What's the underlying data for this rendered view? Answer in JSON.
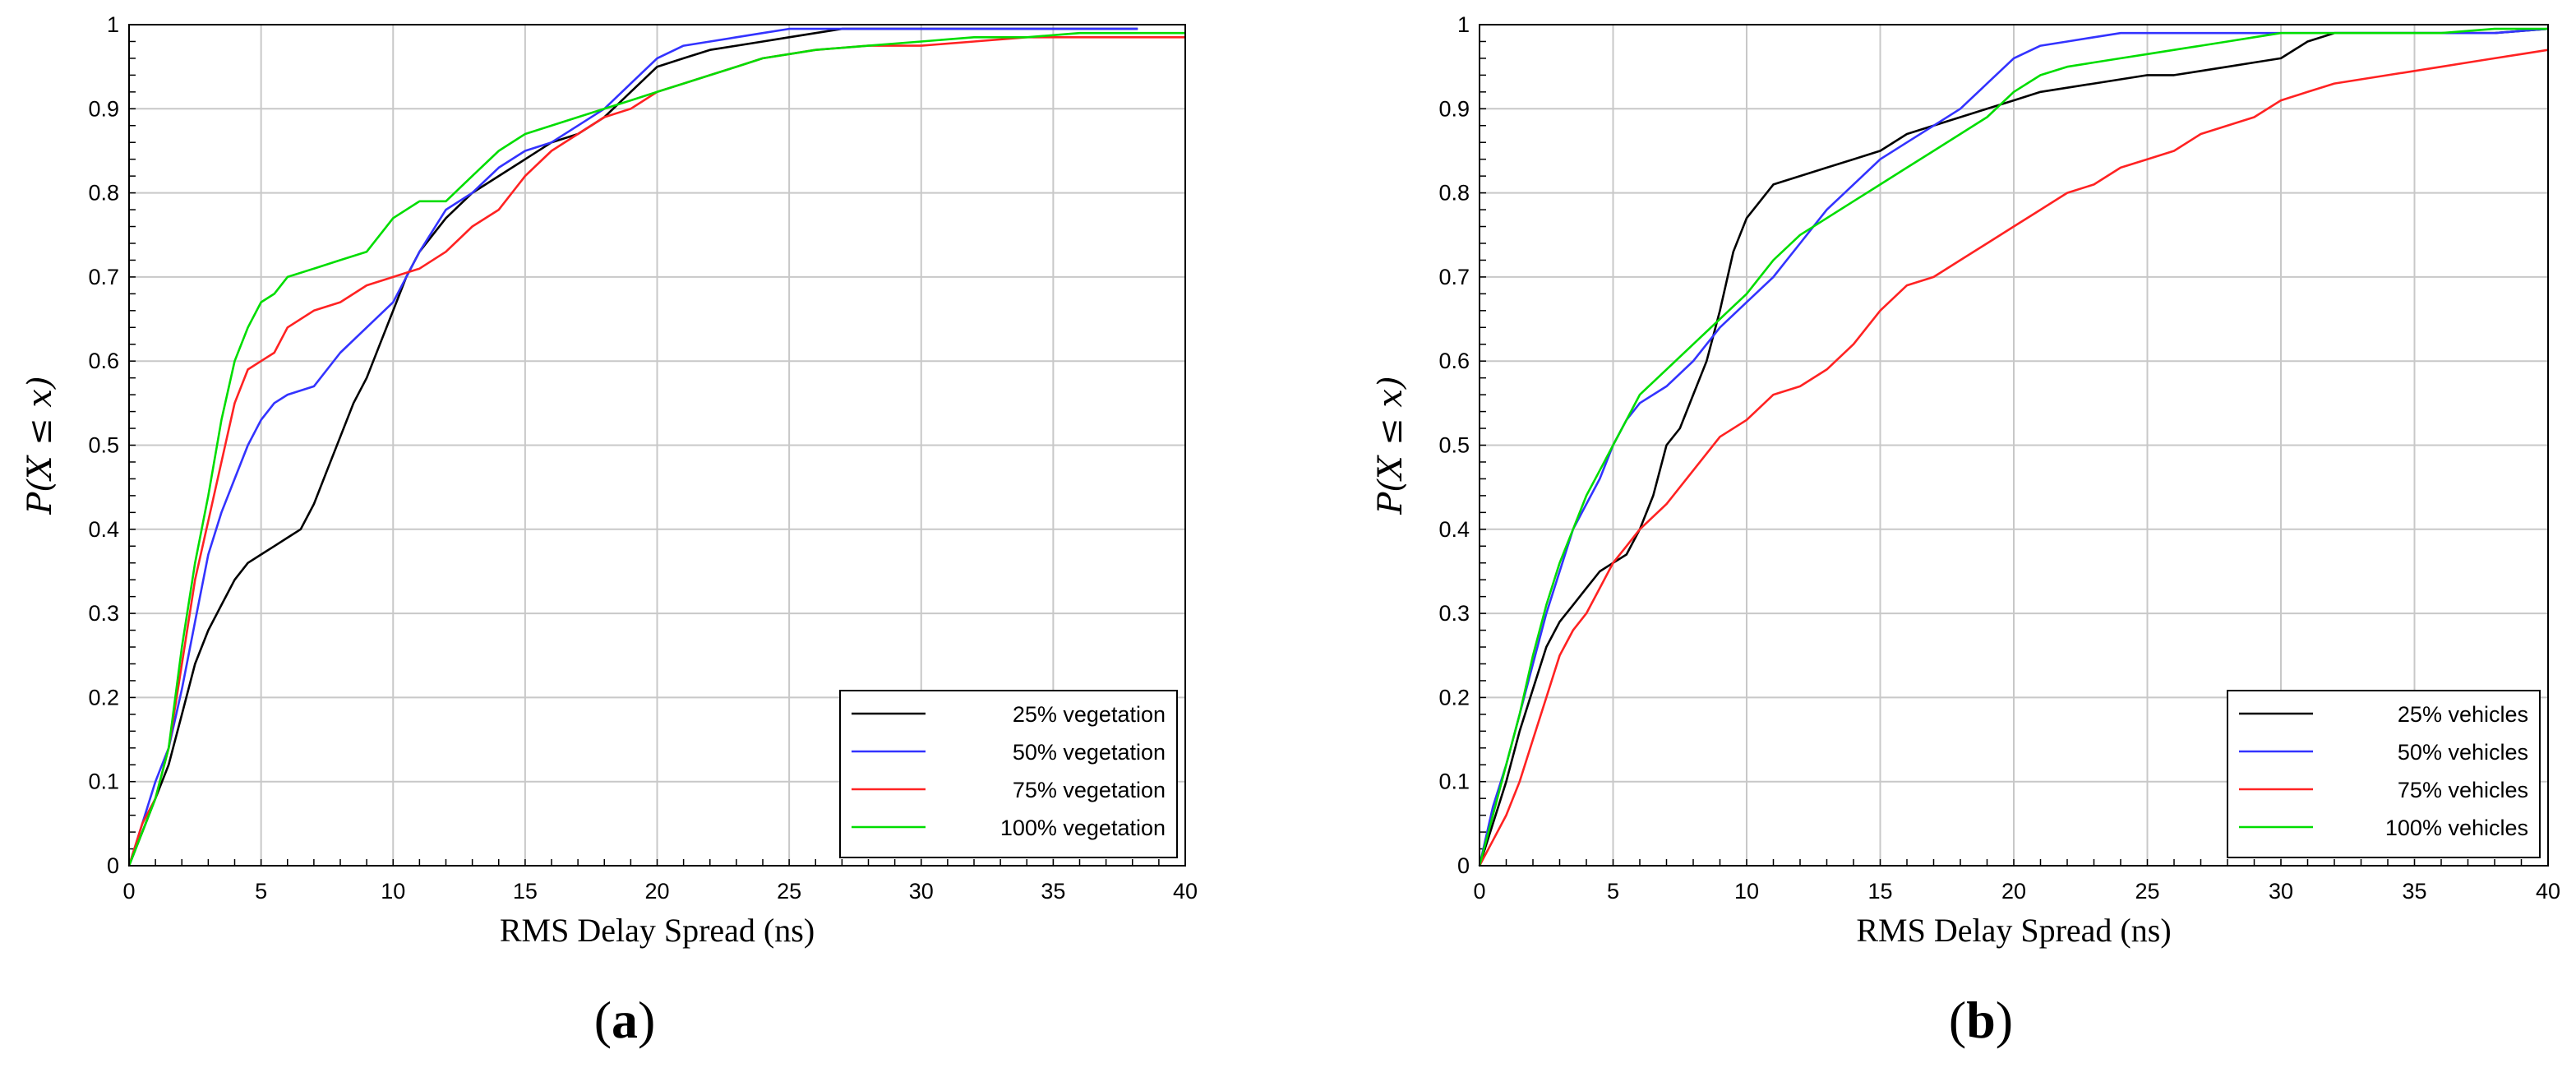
{
  "chart_data": [
    {
      "type": "line",
      "panel_label": "a",
      "xlabel": "RMS Delay Spread (ns)",
      "ylabel": "P(X ≤ x)",
      "xlim": [
        0,
        40
      ],
      "ylim": [
        0,
        1
      ],
      "xticks": [
        "0",
        "5",
        "10",
        "15",
        "20",
        "25",
        "30",
        "35",
        "40"
      ],
      "yticks": [
        "0",
        "0.1",
        "0.2",
        "0.3",
        "0.4",
        "0.5",
        "0.6",
        "0.7",
        "0.8",
        "0.9",
        "1"
      ],
      "grid": true,
      "legend_position": "bottom-right",
      "series": [
        {
          "name": "25% vegetation",
          "color": "#000000",
          "x": [
            0,
            0.5,
            1,
            1.5,
            2,
            2.5,
            3,
            3.5,
            4,
            4.5,
            5,
            5.5,
            6,
            6.5,
            7,
            7.5,
            8,
            8.5,
            9,
            9.5,
            10,
            10.5,
            11,
            12,
            13,
            14,
            15,
            16,
            17,
            18,
            19,
            20,
            21,
            22,
            23,
            24,
            25,
            26,
            27,
            28,
            30,
            32,
            34,
            36,
            38.2
          ],
          "y": [
            0,
            0.04,
            0.08,
            0.12,
            0.18,
            0.24,
            0.28,
            0.31,
            0.34,
            0.36,
            0.37,
            0.38,
            0.39,
            0.4,
            0.43,
            0.47,
            0.51,
            0.55,
            0.58,
            0.62,
            0.66,
            0.7,
            0.73,
            0.77,
            0.8,
            0.82,
            0.84,
            0.86,
            0.87,
            0.89,
            0.92,
            0.95,
            0.96,
            0.97,
            0.975,
            0.98,
            0.985,
            0.99,
            0.995,
            0.995,
            0.995,
            0.995,
            0.995,
            0.995,
            0.995
          ]
        },
        {
          "name": "50% vegetation",
          "color": "#3333ff",
          "x": [
            0,
            0.5,
            1,
            1.5,
            2,
            2.5,
            3,
            3.5,
            4,
            4.5,
            5,
            5.5,
            6,
            7,
            8,
            9,
            10,
            11,
            12,
            13,
            14,
            15,
            16,
            17,
            18,
            19,
            20,
            21,
            22,
            23,
            24,
            25,
            26,
            28,
            30,
            32,
            34,
            36,
            38.2
          ],
          "y": [
            0,
            0.05,
            0.1,
            0.14,
            0.21,
            0.29,
            0.37,
            0.42,
            0.46,
            0.5,
            0.53,
            0.55,
            0.56,
            0.57,
            0.61,
            0.64,
            0.67,
            0.73,
            0.78,
            0.8,
            0.83,
            0.85,
            0.86,
            0.88,
            0.9,
            0.93,
            0.96,
            0.975,
            0.98,
            0.985,
            0.99,
            0.995,
            0.995,
            0.995,
            0.995,
            0.995,
            0.995,
            0.995,
            0.995
          ]
        },
        {
          "name": "75% vegetation",
          "color": "#ff2222",
          "x": [
            0,
            0.5,
            1,
            1.5,
            2,
            2.5,
            3,
            3.5,
            4,
            4.5,
            5,
            5.5,
            6,
            7,
            8,
            9,
            10,
            11,
            12,
            13,
            14,
            15,
            16,
            17,
            18,
            19,
            20,
            21,
            22,
            23,
            24,
            25,
            26,
            28,
            30,
            32,
            34,
            36,
            38,
            40
          ],
          "y": [
            0,
            0.05,
            0.08,
            0.14,
            0.24,
            0.34,
            0.41,
            0.48,
            0.55,
            0.59,
            0.6,
            0.61,
            0.64,
            0.66,
            0.67,
            0.69,
            0.7,
            0.71,
            0.73,
            0.76,
            0.78,
            0.82,
            0.85,
            0.87,
            0.89,
            0.9,
            0.92,
            0.93,
            0.94,
            0.95,
            0.96,
            0.965,
            0.97,
            0.975,
            0.975,
            0.98,
            0.985,
            0.985,
            0.985,
            0.985
          ]
        },
        {
          "name": "100% vegetation",
          "color": "#00dd00",
          "x": [
            0,
            0.5,
            1,
            1.5,
            2,
            2.5,
            3,
            3.5,
            4,
            4.5,
            5,
            5.5,
            6,
            7,
            8,
            9,
            10,
            11,
            12,
            13,
            14,
            15,
            16,
            17,
            18,
            19,
            20,
            21,
            22,
            23,
            24,
            25,
            26,
            28,
            30,
            32,
            34,
            36,
            38,
            40
          ],
          "y": [
            0,
            0.04,
            0.08,
            0.14,
            0.26,
            0.36,
            0.44,
            0.53,
            0.6,
            0.64,
            0.67,
            0.68,
            0.7,
            0.71,
            0.72,
            0.73,
            0.77,
            0.79,
            0.79,
            0.82,
            0.85,
            0.87,
            0.88,
            0.89,
            0.9,
            0.91,
            0.92,
            0.93,
            0.94,
            0.95,
            0.96,
            0.965,
            0.97,
            0.975,
            0.98,
            0.985,
            0.985,
            0.99,
            0.99,
            0.99
          ]
        }
      ]
    },
    {
      "type": "line",
      "panel_label": "b",
      "xlabel": "RMS Delay Spread (ns)",
      "ylabel": "P(X ≤ x)",
      "xlim": [
        0,
        40
      ],
      "ylim": [
        0,
        1
      ],
      "xticks": [
        "0",
        "5",
        "10",
        "15",
        "20",
        "25",
        "30",
        "35",
        "40"
      ],
      "yticks": [
        "0",
        "0.1",
        "0.2",
        "0.3",
        "0.4",
        "0.5",
        "0.6",
        "0.7",
        "0.8",
        "0.9",
        "1"
      ],
      "grid": true,
      "legend_position": "bottom-right",
      "series": [
        {
          "name": "25% vehicles",
          "color": "#000000",
          "x": [
            0,
            0.5,
            1,
            1.5,
            2,
            2.5,
            3,
            3.5,
            4,
            4.5,
            5,
            5.5,
            6,
            6.5,
            7,
            7.5,
            8,
            8.5,
            9,
            9.5,
            10,
            10.5,
            11,
            12,
            13,
            14,
            15,
            16,
            17,
            18,
            19,
            20,
            21,
            22,
            23,
            24,
            25,
            26,
            27,
            28,
            29,
            30,
            31,
            32,
            34,
            36,
            38,
            40
          ],
          "y": [
            0,
            0.05,
            0.1,
            0.16,
            0.21,
            0.26,
            0.29,
            0.31,
            0.33,
            0.35,
            0.36,
            0.37,
            0.4,
            0.44,
            0.5,
            0.52,
            0.56,
            0.6,
            0.66,
            0.73,
            0.77,
            0.79,
            0.81,
            0.82,
            0.83,
            0.84,
            0.85,
            0.87,
            0.88,
            0.89,
            0.9,
            0.91,
            0.92,
            0.925,
            0.93,
            0.935,
            0.94,
            0.94,
            0.945,
            0.95,
            0.955,
            0.96,
            0.98,
            0.99,
            0.99,
            0.99,
            0.99,
            0.995
          ]
        },
        {
          "name": "50% vehicles",
          "color": "#3333ff",
          "x": [
            0,
            0.5,
            1,
            1.5,
            2,
            2.5,
            3,
            3.5,
            4,
            4.5,
            5,
            5.5,
            6,
            7,
            8,
            9,
            10,
            11,
            12,
            13,
            14,
            15,
            16,
            17,
            18,
            19,
            20,
            21,
            22,
            23,
            24,
            25,
            26,
            28,
            30,
            32,
            34,
            36,
            38,
            40
          ],
          "y": [
            0,
            0.07,
            0.12,
            0.18,
            0.24,
            0.3,
            0.35,
            0.4,
            0.43,
            0.46,
            0.5,
            0.53,
            0.55,
            0.57,
            0.6,
            0.64,
            0.67,
            0.7,
            0.74,
            0.78,
            0.81,
            0.84,
            0.86,
            0.88,
            0.9,
            0.93,
            0.96,
            0.975,
            0.98,
            0.985,
            0.99,
            0.99,
            0.99,
            0.99,
            0.99,
            0.99,
            0.99,
            0.99,
            0.99,
            0.995
          ]
        },
        {
          "name": "75% vehicles",
          "color": "#ff2222",
          "x": [
            0,
            0.5,
            1,
            1.5,
            2,
            2.5,
            3,
            3.5,
            4,
            4.5,
            5,
            5.5,
            6,
            7,
            8,
            9,
            10,
            11,
            12,
            13,
            14,
            15,
            16,
            17,
            18,
            19,
            20,
            21,
            22,
            23,
            24,
            25,
            26,
            27,
            28,
            29,
            30,
            31,
            32,
            33,
            34,
            35,
            36,
            37,
            38,
            39,
            40
          ],
          "y": [
            0,
            0.03,
            0.06,
            0.1,
            0.15,
            0.2,
            0.25,
            0.28,
            0.3,
            0.33,
            0.36,
            0.38,
            0.4,
            0.43,
            0.47,
            0.51,
            0.53,
            0.56,
            0.57,
            0.59,
            0.62,
            0.66,
            0.69,
            0.7,
            0.72,
            0.74,
            0.76,
            0.78,
            0.8,
            0.81,
            0.83,
            0.84,
            0.85,
            0.87,
            0.88,
            0.89,
            0.91,
            0.92,
            0.93,
            0.935,
            0.94,
            0.945,
            0.95,
            0.955,
            0.96,
            0.965,
            0.97
          ]
        },
        {
          "name": "100% vehicles",
          "color": "#00dd00",
          "x": [
            0,
            0.5,
            1,
            1.5,
            2,
            2.5,
            3,
            3.5,
            4,
            4.5,
            5,
            5.5,
            6,
            7,
            8,
            9,
            10,
            11,
            12,
            13,
            14,
            15,
            16,
            17,
            18,
            19,
            20,
            21,
            22,
            23,
            24,
            25,
            26,
            27,
            28,
            29,
            30,
            32,
            34,
            36,
            38,
            40
          ],
          "y": [
            0,
            0.06,
            0.12,
            0.18,
            0.25,
            0.31,
            0.36,
            0.4,
            0.44,
            0.47,
            0.5,
            0.53,
            0.56,
            0.59,
            0.62,
            0.65,
            0.68,
            0.72,
            0.75,
            0.77,
            0.79,
            0.81,
            0.83,
            0.85,
            0.87,
            0.89,
            0.92,
            0.94,
            0.95,
            0.955,
            0.96,
            0.965,
            0.97,
            0.975,
            0.98,
            0.985,
            0.99,
            0.99,
            0.99,
            0.99,
            0.995,
            0.995
          ]
        }
      ]
    }
  ]
}
